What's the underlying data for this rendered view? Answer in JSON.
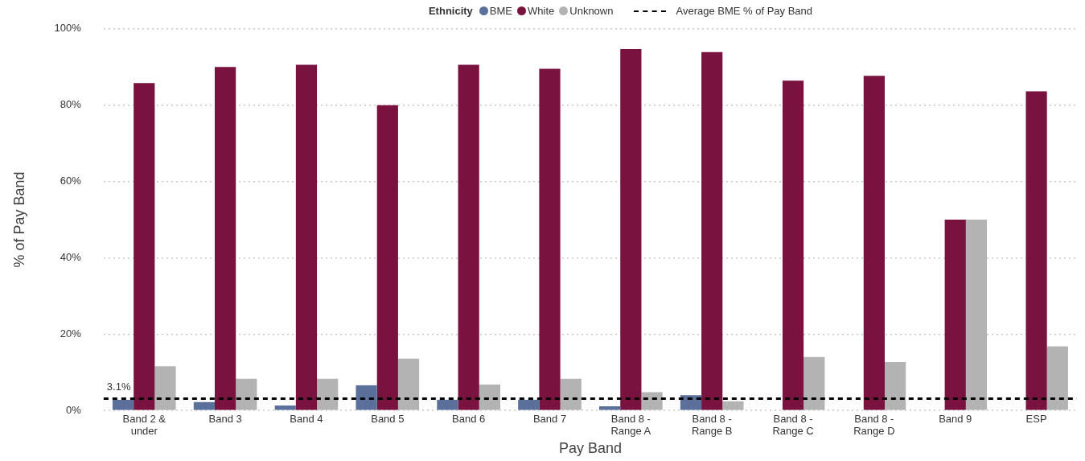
{
  "chart_data": {
    "type": "bar",
    "xlabel": "Pay Band",
    "ylabel": "% of Pay Band",
    "legend_title": "Ethnicity",
    "categories": [
      "Band 2 & under",
      "Band 3",
      "Band 4",
      "Band 5",
      "Band 6",
      "Band 7",
      "Band 8 - Range A",
      "Band 8 - Range B",
      "Band 8 - Range C",
      "Band 8 - Range D",
      "Band 9",
      "ESP"
    ],
    "series": [
      {
        "name": "BME",
        "color": "#5a6f9a",
        "values": [
          2.8,
          2.2,
          1.3,
          6.6,
          2.8,
          2.8,
          1.1,
          4.0,
          0,
          0,
          0,
          0
        ]
      },
      {
        "name": "White",
        "color": "#7a1240",
        "values": [
          85.8,
          90,
          90.6,
          80,
          90.6,
          89.5,
          94.7,
          93.9,
          86.4,
          87.7,
          50,
          83.6
        ]
      },
      {
        "name": "Unknown",
        "color": "#b3b3b3",
        "values": [
          11.6,
          8.3,
          8.3,
          13.6,
          6.8,
          8.3,
          4.8,
          2.4,
          14,
          12.7,
          50,
          16.8
        ]
      }
    ],
    "ylim": [
      0,
      100
    ],
    "yticks": [
      {
        "value": 0,
        "label": "0%"
      },
      {
        "value": 20,
        "label": "20%"
      },
      {
        "value": 40,
        "label": "40%"
      },
      {
        "value": 60,
        "label": "60%"
      },
      {
        "value": 80,
        "label": "80%"
      },
      {
        "value": 100,
        "label": "100%"
      }
    ],
    "grid": "y",
    "legend": "top",
    "ref_lines": [
      {
        "axis": "y",
        "value": 3.1,
        "label": "Average BME % of Pay Band",
        "color": "#000000",
        "line_style": "dashed"
      }
    ],
    "annotations": [
      {
        "text": "3.1%",
        "y": 3.1
      }
    ]
  }
}
